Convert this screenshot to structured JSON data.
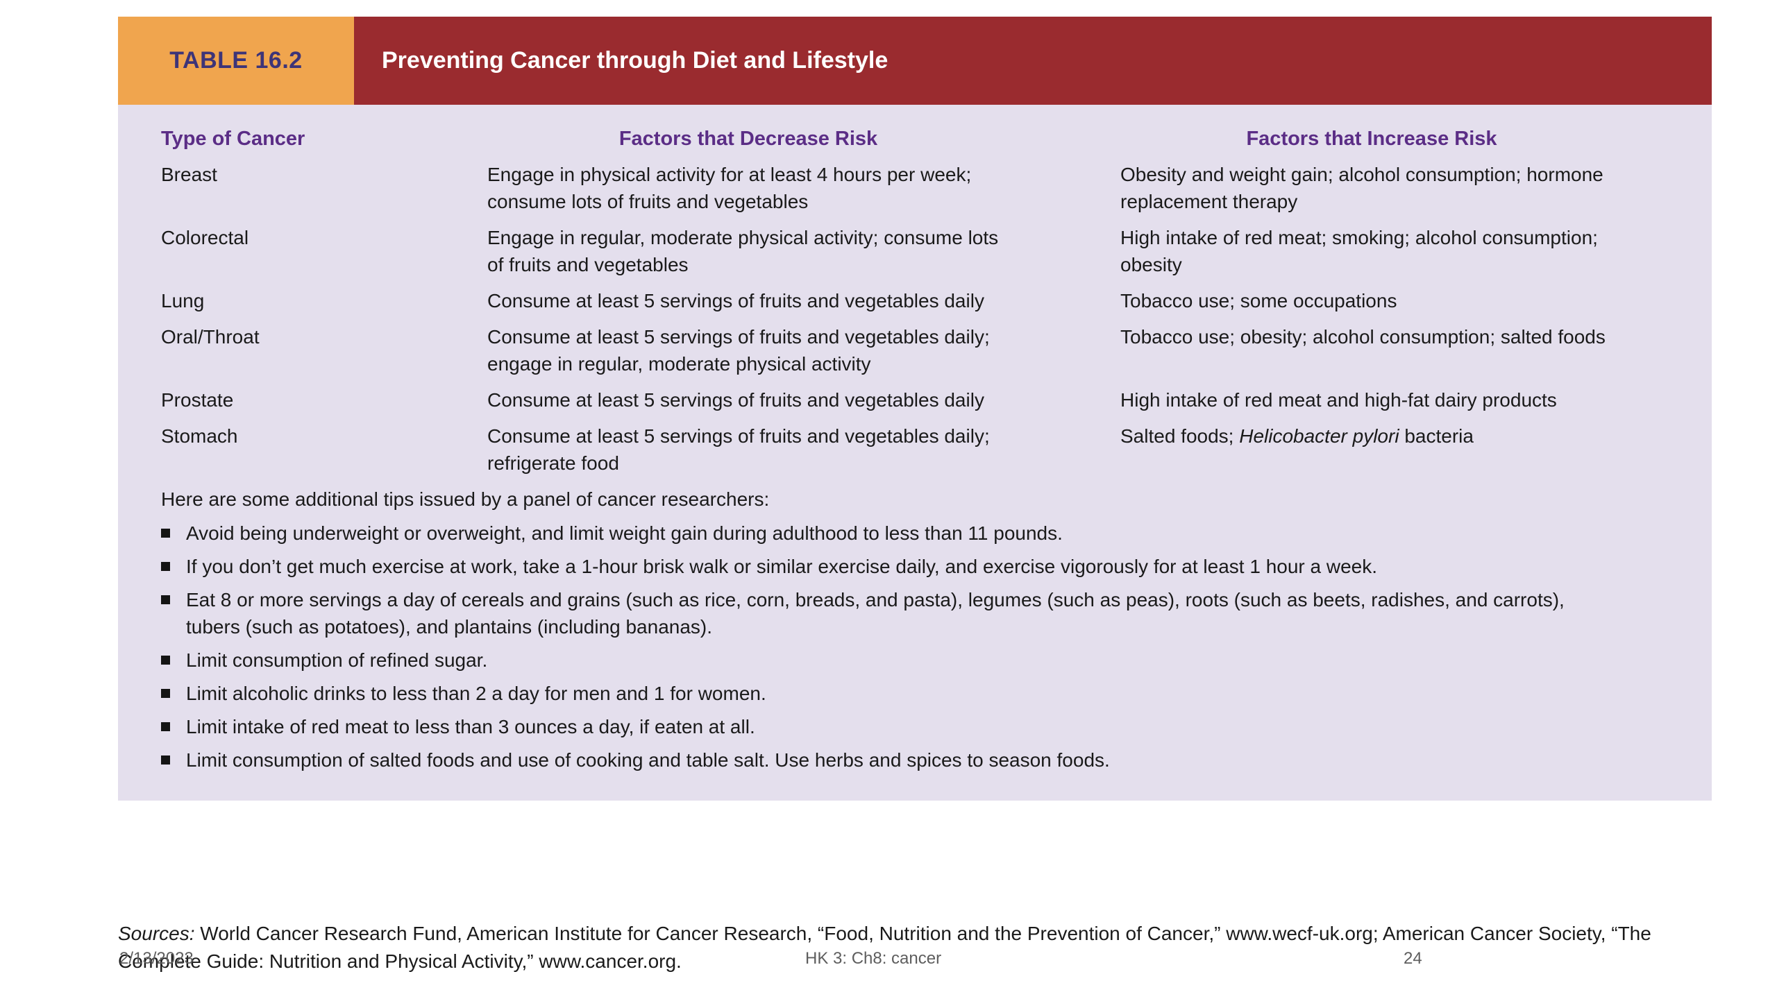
{
  "colors": {
    "header_label_bg": "#F0A54E",
    "header_title_bg": "#9A2B2F",
    "table_bg": "#E4DFED",
    "column_header_text": "#5B2D86",
    "label_text": "#3D3478",
    "body_text": "#1A1A1A",
    "footer_text": "#5E5E5E"
  },
  "table": {
    "label": "TABLE 16.2",
    "title": "Preventing Cancer through Diet and Lifestyle",
    "columns": [
      "Type of Cancer",
      "Factors that Decrease Risk",
      "Factors that Increase Risk"
    ],
    "rows": [
      {
        "type": "Breast",
        "decrease": "Engage in physical activity for at least 4 hours per week; consume lots of fruits and vegetables",
        "increase": [
          {
            "text": "Obesity and weight gain; alcohol consumption; hormone replacement therapy"
          }
        ]
      },
      {
        "type": "Colorectal",
        "decrease": "Engage in regular, moderate physical activity; consume lots of fruits and vegetables",
        "increase": [
          {
            "text": "High intake of red meat; smoking; alcohol consumption; obesity"
          }
        ]
      },
      {
        "type": "Lung",
        "decrease": "Consume at least 5 servings of fruits and vegetables daily",
        "increase": [
          {
            "text": "Tobacco use; some occupations"
          }
        ]
      },
      {
        "type": "Oral/Throat",
        "decrease": "Consume at least 5 servings of fruits and vegetables daily; engage in regular, moderate physical activity",
        "increase": [
          {
            "text": "Tobacco use; obesity; alcohol consumption; salted foods"
          }
        ]
      },
      {
        "type": "Prostate",
        "decrease": "Consume at least 5 servings of fruits and vegetables daily",
        "increase": [
          {
            "text": "High intake of red meat and high-fat dairy products"
          }
        ]
      },
      {
        "type": "Stomach",
        "decrease": "Consume at least 5 servings of fruits and vegetables daily; refrigerate food",
        "increase": [
          {
            "text": "Salted foods; "
          },
          {
            "text": "Helicobacter pylori",
            "italic": true
          },
          {
            "text": " bacteria"
          }
        ]
      }
    ],
    "tips_intro": "Here are some additional tips issued by a panel of cancer researchers:",
    "tips": [
      "Avoid being underweight or overweight, and limit weight gain during adulthood to less than 11 pounds.",
      "If you don’t get much exercise at work, take a 1-hour brisk walk or similar exercise daily, and exercise vigorously for at least 1 hour a week.",
      "Eat 8 or more servings a day of cereals and grains (such as rice, corn, breads, and pasta), legumes (such as peas), roots (such as beets, radishes, and carrots), tubers (such as potatoes), and plantains (including bananas).",
      "Limit consumption of refined sugar.",
      "Limit alcoholic drinks to less than 2 a day for men and 1 for women.",
      "Limit intake of red meat to less than 3 ounces a day, if eaten at all.",
      "Limit consumption of salted foods and use of cooking and table salt. Use herbs and spices to season foods."
    ]
  },
  "sources": {
    "segments": [
      {
        "text": "Sources:",
        "italic": true
      },
      {
        "text": " World Cancer Research Fund, American Institute for Cancer Research, “Food, Nutrition and the Prevention of Cancer,” www.wecf-uk.org; American Cancer Society, “The Complete Guide: Nutrition and Physical Activity,” www.cancer.org."
      }
    ]
  },
  "footer": {
    "date": "2/13/2023",
    "course": "HK 3: Ch8: cancer",
    "page": "24"
  }
}
